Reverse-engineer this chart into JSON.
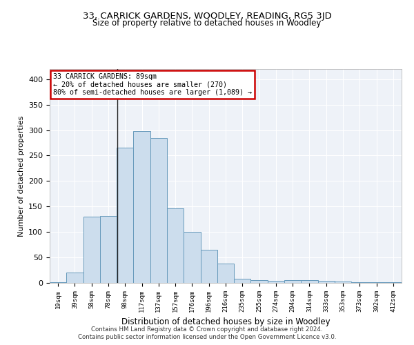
{
  "title": "33, CARRICK GARDENS, WOODLEY, READING, RG5 3JD",
  "subtitle": "Size of property relative to detached houses in Woodley",
  "xlabel": "Distribution of detached houses by size in Woodley",
  "ylabel": "Number of detached properties",
  "categories": [
    "19sqm",
    "39sqm",
    "58sqm",
    "78sqm",
    "98sqm",
    "117sqm",
    "137sqm",
    "157sqm",
    "176sqm",
    "196sqm",
    "216sqm",
    "235sqm",
    "255sqm",
    "274sqm",
    "294sqm",
    "314sqm",
    "333sqm",
    "353sqm",
    "373sqm",
    "392sqm",
    "412sqm"
  ],
  "values": [
    2,
    20,
    130,
    132,
    265,
    298,
    285,
    147,
    100,
    65,
    38,
    8,
    6,
    4,
    5,
    5,
    4,
    3,
    2,
    1,
    1
  ],
  "bar_color": "#ccdded",
  "bar_edge_color": "#6699bb",
  "background_color": "#eef2f8",
  "annotation_text": "33 CARRICK GARDENS: 89sqm\n← 20% of detached houses are smaller (270)\n80% of semi-detached houses are larger (1,089) →",
  "annotation_box_color": "#ffffff",
  "annotation_box_edge": "#cc0000",
  "ylim": [
    0,
    420
  ],
  "yticks": [
    0,
    50,
    100,
    150,
    200,
    250,
    300,
    350,
    400
  ],
  "footer1": "Contains HM Land Registry data © Crown copyright and database right 2024.",
  "footer2": "Contains public sector information licensed under the Open Government Licence v3.0.",
  "title_fontsize": 9.5,
  "subtitle_fontsize": 8.5
}
